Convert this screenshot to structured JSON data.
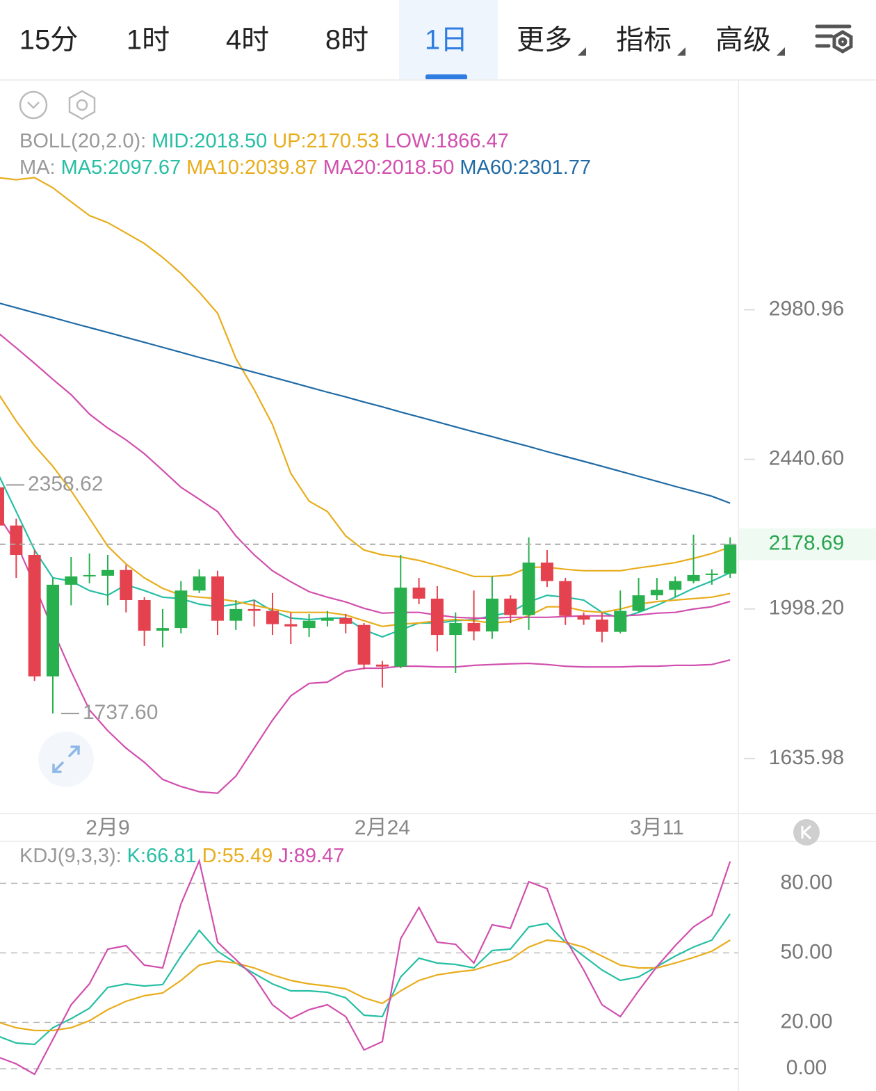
{
  "tabs": [
    {
      "label": "15分"
    },
    {
      "label": "1时"
    },
    {
      "label": "4时"
    },
    {
      "label": "8时"
    },
    {
      "label": "1日"
    },
    {
      "label": "更多",
      "menu": true
    },
    {
      "label": "指标",
      "menu": true
    },
    {
      "label": "高级",
      "menu": true
    }
  ],
  "selected": 4,
  "chart_data": [
    {
      "type": "candlestick",
      "categories": [
        null,
        null,
        null,
        null,
        null,
        null,
        "2月9",
        null,
        null,
        null,
        null,
        null,
        null,
        null,
        null,
        null,
        null,
        null,
        null,
        null,
        null,
        "2月24",
        null,
        null,
        null,
        null,
        null,
        null,
        null,
        null,
        null,
        null,
        null,
        null,
        null,
        null,
        "3月11",
        null,
        null,
        null,
        null
      ],
      "open": [
        2351,
        2234,
        2148,
        1826,
        2064,
        2087,
        2089,
        2105,
        2022,
        1941,
        1948,
        2048,
        2087,
        1967,
        1998,
        1993,
        1958,
        1948,
        1967,
        1974,
        1956,
        1855,
        1850,
        2056,
        2026,
        1930,
        1961,
        1939,
        2026,
        1982,
        2126,
        2074,
        1980,
        1970,
        1938,
        1993,
        2035,
        2050,
        2074,
        2091,
        2095
      ],
      "high": [
        2358.62,
        2255,
        2162,
        2083,
        2142,
        2152,
        2148,
        2119,
        2030,
        1998,
        2074,
        2107,
        2103,
        2022,
        2022,
        2041,
        1989,
        1985,
        1993,
        1985,
        1961,
        1864,
        2148,
        2083,
        2060,
        1989,
        2048,
        2087,
        2035,
        2199,
        2162,
        2083,
        1989,
        1989,
        2048,
        2083,
        2083,
        2087,
        2207,
        2107,
        2199
      ],
      "low": [
        2224,
        2083,
        1815,
        1737.6,
        2008,
        2068,
        2008,
        1989,
        1902,
        1898,
        1934,
        2041,
        1930,
        1943,
        1952,
        1930,
        1907,
        1925,
        1952,
        1934,
        1843,
        1799,
        1846,
        2011,
        1888,
        1834,
        1916,
        1920,
        1961,
        1943,
        2058,
        1956,
        1956,
        1911,
        1934,
        1989,
        2022,
        2030,
        2068,
        2064,
        2083
      ],
      "close": [
        2234,
        2148,
        1826,
        2064,
        2087,
        2091,
        2105,
        2022,
        1941,
        1948,
        2048,
        2087,
        1967,
        1998,
        1993,
        1958,
        1952,
        1967,
        1974,
        1959,
        1855,
        1850,
        2056,
        2026,
        1930,
        1961,
        1939,
        2026,
        1982,
        2126,
        2074,
        1980,
        1970,
        1938,
        1993,
        2035,
        2050,
        2074,
        2091,
        2095,
        2178.69
      ],
      "up_color": "#27b04d",
      "down_color": "#e4424f",
      "log_scale": true,
      "grid": false,
      "ylim": [
        1520,
        4053
      ],
      "yticks": [
        2980.96,
        {
          "value": 2440.6,
          "label": "2440.60"
        },
        {
          "value": 1998.2,
          "label": "1998.20"
        },
        1635.98
      ],
      "last_price": 2178.69,
      "last_price_color": "#2aa44f",
      "annotations": [
        {
          "value": 2358.62
        },
        {
          "value": 1737.6,
          "label": "1737.60"
        }
      ],
      "overlays": [
        {
          "label": "BOLL(20,2.0):",
          "items": [
            {
              "label": "MID:2018.50",
              "color": "#26bfa4"
            },
            {
              "label": "UP:2170.53",
              "color": "#e8ad1c",
              "values": [
                3557,
                3547,
                3557,
                3509,
                3444,
                3381,
                3349,
                3303,
                3257,
                3197,
                3129,
                3052,
                2967,
                2793,
                2679,
                2557,
                2395,
                2308,
                2276,
                2203,
                2162,
                2148,
                2142,
                2132,
                2118,
                2103,
                2087,
                2087,
                2091,
                2113,
                2113,
                2107,
                2103,
                2103,
                2103,
                2111,
                2118,
                2126,
                2138,
                2152,
                2170.53
              ]
            },
            {
              "label": "LOW:1866.47",
              "color": "#d14fae",
              "values": [
                2266,
                2183,
                2064,
                1943,
                1838,
                1746,
                1698,
                1659,
                1628,
                1591,
                1576,
                1565,
                1562,
                1598,
                1659,
                1722,
                1779,
                1809,
                1812,
                1838,
                1846,
                1846,
                1851,
                1851,
                1849,
                1849,
                1853,
                1855,
                1857,
                1858,
                1855,
                1851,
                1849,
                1849,
                1849,
                1851,
                1851,
                1853,
                1853,
                1855,
                1866.47
              ]
            }
          ]
        },
        {
          "label": "MA:",
          "items": [
            {
              "label": "MA5:2097.67",
              "color": "#26bfa4",
              "values": [
                2395,
                2276,
                2162,
                2083,
                2074,
                2048,
                2035,
                2064,
                2048,
                2030,
                2026,
                2011,
                2004,
                2011,
                2022,
                1993,
                1974,
                1970,
                1974,
                1974,
                1943,
                1925,
                1943,
                1961,
                1961,
                1967,
                1970,
                1980,
                1989,
                2017,
                2035,
                2030,
                2022,
                1989,
                1974,
                1989,
                2008,
                2030,
                2054,
                2074,
                2097.67
              ]
            },
            {
              "label": "MA10:2039.87",
              "color": "#e8ad1c",
              "values": [
                2667,
                2569,
                2486,
                2418,
                2340,
                2256,
                2173,
                2122,
                2083,
                2054,
                2035,
                2030,
                2026,
                2018,
                2008,
                1998,
                1989,
                1989,
                1989,
                1982,
                1967,
                1952,
                1958,
                1961,
                1967,
                1970,
                1967,
                1961,
                1965,
                1980,
                2004,
                2004,
                1993,
                1989,
                1998,
                2011,
                2018,
                2022,
                2026,
                2030,
                2039.87
              ]
            },
            {
              "label": "MA20:2018.50",
              "color": "#d14fae",
              "values": [
                2891,
                2833,
                2775,
                2716,
                2661,
                2593,
                2545,
                2505,
                2459,
                2405,
                2351,
                2314,
                2276,
                2203,
                2148,
                2103,
                2072,
                2045,
                2030,
                2017,
                2000,
                1987,
                1989,
                1989,
                1982,
                1976,
                1974,
                1974,
                1976,
                1976,
                1976,
                1978,
                1980,
                1980,
                1980,
                1982,
                1987,
                1989,
                1998,
                2004,
                2018.5
              ]
            },
            {
              "label": "MA60:2301.77",
              "color": "#1f6aa5",
              "values": [
                3009,
                2989,
                2969,
                2950,
                2930,
                2911,
                2892,
                2873,
                2854,
                2835,
                2816,
                2797,
                2779,
                2760,
                2742,
                2724,
                2706,
                2688,
                2670,
                2653,
                2635,
                2618,
                2600,
                2583,
                2566,
                2549,
                2532,
                2516,
                2499,
                2483,
                2466,
                2450,
                2434,
                2418,
                2402,
                2386,
                2370,
                2354,
                2339,
                2323,
                2301.77
              ]
            }
          ]
        }
      ]
    },
    {
      "type": "line",
      "label": "KDJ(9,3,3):",
      "ylim": [
        -9.6,
        96.6
      ],
      "grid": true,
      "yticks": [
        {
          "value": 0,
          "label": "0.00"
        },
        {
          "value": 20,
          "label": "20.00"
        },
        {
          "value": 50,
          "label": "50.00"
        },
        {
          "value": 80,
          "label": "80.00"
        }
      ],
      "series": [
        {
          "label": "K:66.81",
          "color": "#26bfa4",
          "values": [
            14.1,
            11.1,
            10.5,
            17.7,
            21.6,
            26.1,
            35.1,
            36.6,
            35.7,
            36.3,
            48.6,
            59.7,
            50.7,
            45.6,
            41.1,
            36.6,
            33.6,
            33.6,
            33.0,
            30.6,
            23.1,
            22.5,
            39.6,
            47.7,
            45.6,
            45.0,
            43.5,
            51.0,
            51.6,
            61.2,
            62.7,
            54.6,
            48.6,
            42.6,
            38.1,
            39.6,
            44.1,
            48.6,
            52.5,
            55.5,
            66.81
          ]
        },
        {
          "label": "D:55.49",
          "color": "#e8ad1c",
          "values": [
            20.1,
            17.7,
            16.5,
            16.5,
            17.7,
            20.7,
            25.5,
            29.1,
            31.5,
            32.7,
            38.1,
            44.7,
            46.5,
            45.6,
            43.5,
            40.5,
            38.1,
            36.6,
            35.7,
            34.5,
            30.6,
            28.2,
            33.6,
            38.1,
            40.5,
            41.7,
            42.6,
            45.0,
            47.1,
            52.5,
            55.5,
            54.6,
            52.5,
            48.6,
            44.7,
            43.5,
            43.5,
            45.6,
            48.0,
            50.7,
            55.49
          ]
        },
        {
          "label": "J:89.47",
          "color": "#d14fae",
          "values": [
            5.1,
            2.1,
            -2.4,
            12.6,
            27.6,
            36.6,
            51.6,
            53.1,
            44.7,
            43.5,
            71.1,
            89.7,
            54.6,
            47.1,
            39.6,
            27.6,
            21.6,
            25.5,
            27.6,
            22.5,
            8.1,
            11.7,
            56.1,
            69.6,
            54.6,
            53.7,
            45.6,
            62.1,
            60.6,
            80.7,
            77.7,
            56.1,
            42.6,
            27.6,
            22.5,
            33.6,
            44.1,
            53.1,
            61.2,
            66.3,
            89.47
          ]
        }
      ]
    }
  ]
}
